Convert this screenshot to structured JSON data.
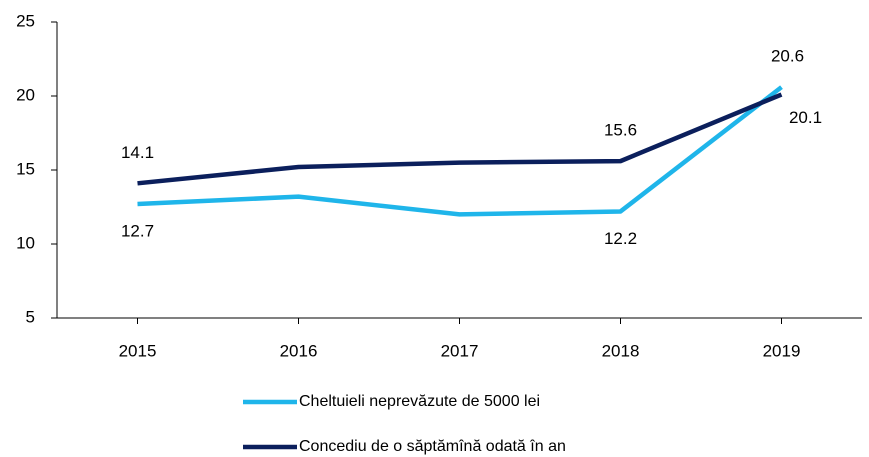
{
  "chart_data": {
    "type": "line",
    "categories": [
      "2015",
      "2016",
      "2017",
      "2018",
      "2019"
    ],
    "series": [
      {
        "name": "Cheltuieli neprevăzute de 5000 lei",
        "color": "#1fb5ea",
        "values": [
          12.7,
          13.2,
          12.0,
          12.2,
          20.6
        ],
        "value_labels": [
          "12.7",
          null,
          null,
          "12.2",
          "20.6"
        ]
      },
      {
        "name": "Concediu de o săptămînă odată în an",
        "color": "#0b1f5c",
        "values": [
          14.1,
          15.2,
          15.5,
          15.6,
          20.1
        ],
        "value_labels": [
          "14.1",
          null,
          null,
          "15.6",
          "20.1"
        ]
      }
    ],
    "ylim": [
      5,
      25
    ],
    "yticks": [
      5,
      10,
      15,
      20,
      25
    ],
    "grid": false
  }
}
